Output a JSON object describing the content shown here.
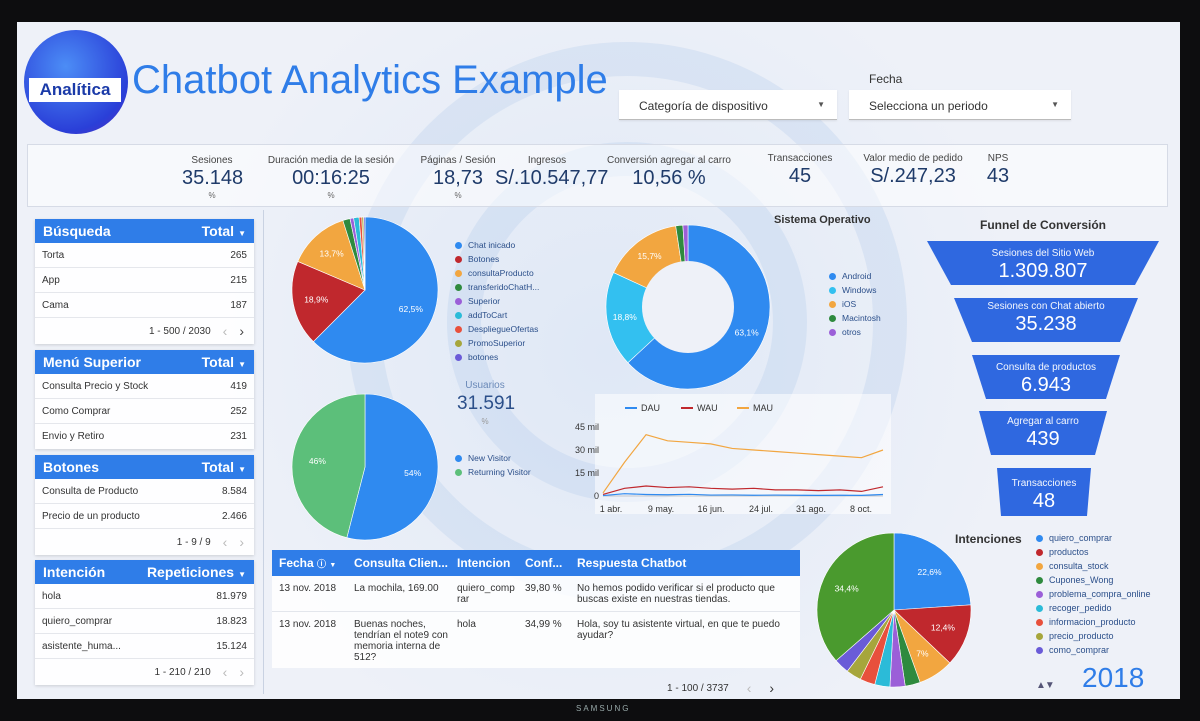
{
  "header": {
    "logo_text": "Analítica",
    "title": "Chatbot Analytics Example",
    "device_dropdown": "Categoría de dispositivo",
    "fecha_label": "Fecha",
    "period_dropdown": "Selecciona un periodo"
  },
  "kpis": [
    {
      "label": "Sesiones",
      "value": "35.148",
      "pct": "%"
    },
    {
      "label": "Duración media de la sesión",
      "value": "00:16:25",
      "pct": "%"
    },
    {
      "label": "Páginas / Sesión",
      "value": "18,73",
      "pct": "%"
    },
    {
      "label": "Ingresos",
      "value": "S/.10.547,77",
      "pct": ""
    },
    {
      "label": "Conversión agregar al carro",
      "value": "10,56 %",
      "pct": ""
    },
    {
      "label": "Transacciones",
      "value": "45",
      "pct": ""
    },
    {
      "label": "Valor medio de pedido",
      "value": "S/.247,23",
      "pct": ""
    },
    {
      "label": "NPS",
      "value": "43",
      "pct": ""
    }
  ],
  "busqueda": {
    "title": "Búsqueda",
    "metric": "Total",
    "rows": [
      {
        "k": "Torta",
        "v": "265"
      },
      {
        "k": "App",
        "v": "215"
      },
      {
        "k": "Cama",
        "v": "187"
      }
    ],
    "pagination": "1 - 500 / 2030"
  },
  "menu": {
    "title": "Menú Superior",
    "metric": "Total",
    "rows": [
      {
        "k": "Consulta Precio y Stock",
        "v": "419"
      },
      {
        "k": "Como Comprar",
        "v": "252"
      },
      {
        "k": "Envio y Retiro",
        "v": "231"
      }
    ]
  },
  "botones": {
    "title": "Botones",
    "metric": "Total",
    "rows": [
      {
        "k": "Consulta de Producto",
        "v": "8.584"
      },
      {
        "k": "Precio de un producto",
        "v": "2.466"
      }
    ],
    "pagination": "1 - 9 / 9"
  },
  "intencion": {
    "title": "Intención",
    "metric": "Repeticiones",
    "rows": [
      {
        "k": "hola",
        "v": "81.979"
      },
      {
        "k": "quiero_comprar",
        "v": "18.823"
      },
      {
        "k": "asistente_huma...",
        "v": "15.124"
      }
    ],
    "pagination": "1 - 210 / 210"
  },
  "sistema_operativo_title": "Sistema Operativo",
  "usuarios": {
    "label": "Usuarios",
    "value": "31.591",
    "pct": "%"
  },
  "table": {
    "headers": [
      "Fecha",
      "Consulta Clien...",
      "Intencion",
      "Conf...",
      "Respuesta Chatbot"
    ],
    "rows": [
      [
        "13 nov. 2018",
        "La mochila, 169.00",
        "quiero_comprar",
        "39,80 %",
        "No hemos podido verificar si el producto que buscas existe en nuestras tiendas."
      ],
      [
        "13 nov. 2018",
        "Buenas noches, tendrían el note9 con memoria interna de 512?",
        "hola",
        "34,99 %",
        "Hola, soy tu asistente virtual, en que te puedo ayudar?"
      ]
    ],
    "pagination": "1 - 100 / 3737"
  },
  "funnel": {
    "title": "Funnel de Conversión",
    "steps": [
      {
        "label": "Sesiones del Sitio Web",
        "value": "1.309.807"
      },
      {
        "label": "Sesiones con Chat abierto",
        "value": "35.238"
      },
      {
        "label": "Consulta de productos",
        "value": "6.943"
      },
      {
        "label": "Agregar al carro",
        "value": "439"
      },
      {
        "label": "Transacciones",
        "value": "48"
      }
    ]
  },
  "intenciones_title": "Intenciones",
  "year": "2018",
  "colors": {
    "accent": "#2f7de8",
    "funnel": "#2f68e0"
  },
  "chart_data": [
    {
      "type": "pie",
      "labels": [
        "Chat inicado",
        "Botones",
        "consultaProducto",
        "transferidoChatH...",
        "Superior",
        "addToCart",
        "DespliegueOfertas",
        "PromoSuperior",
        "botones"
      ],
      "values": [
        62.5,
        18.9,
        13.7,
        1.6,
        0.8,
        1.2,
        0.6,
        0.4,
        0.3
      ],
      "slice_labels": [
        "62,5%",
        "18,9%",
        "13,7%",
        "",
        "",
        "",
        "",
        "",
        ""
      ],
      "colors": [
        "#2f8af0",
        "#c0282d",
        "#f2a640",
        "#2e8a3e",
        "#9b5fd8",
        "#2bbbd8",
        "#e8503c",
        "#a6a63c",
        "#6a5bd8"
      ]
    },
    {
      "type": "pie",
      "title": "Sistema Operativo",
      "donut": true,
      "labels": [
        "Android",
        "Windows",
        "iOS",
        "Macintosh",
        "otros"
      ],
      "values": [
        63.1,
        18.8,
        15.7,
        1.4,
        1.0
      ],
      "slice_labels": [
        "63,1%",
        "18,8%",
        "15,7%",
        "",
        ""
      ],
      "colors": [
        "#2f8af0",
        "#33c0f0",
        "#f2a640",
        "#2e8a3e",
        "#9b5fd8"
      ]
    },
    {
      "type": "pie",
      "labels": [
        "New Visitor",
        "Returning Visitor"
      ],
      "values": [
        54,
        46
      ],
      "slice_labels": [
        "54%",
        "46%"
      ],
      "colors": [
        "#2f8af0",
        "#5cbf7a"
      ]
    },
    {
      "type": "line",
      "series": [
        {
          "name": "DAU",
          "color": "#2f8af0",
          "values": [
            0.3,
            1.5,
            1.0,
            0.8,
            1.1,
            0.6,
            0.7,
            0.5,
            0.6,
            0.5,
            0.4,
            0.5,
            0.4,
            1.0
          ]
        },
        {
          "name": "WAU",
          "color": "#c0282d",
          "values": [
            1,
            5,
            6.5,
            5.5,
            6,
            5,
            4.5,
            5,
            4,
            4,
            3.5,
            4,
            3,
            6
          ]
        },
        {
          "name": "MAU",
          "color": "#f2a640",
          "values": [
            2,
            22,
            40,
            36,
            35,
            34,
            31,
            30,
            29,
            28,
            27,
            26,
            25,
            30
          ]
        }
      ],
      "y_ticks": [
        "0",
        "15 mil",
        "30 mil",
        "45 mil"
      ],
      "x_ticks": [
        "1 abr.",
        "9 may.",
        "16 jun.",
        "24 jul.",
        "31 ago.",
        "8 oct."
      ],
      "ylim": [
        0,
        45
      ]
    },
    {
      "type": "pie",
      "title": "Intenciones",
      "labels": [
        "quiero_comprar",
        "productos",
        "consulta_stock",
        "Cupones_Wong",
        "problema_compra_online",
        "recoger_pedido",
        "informacion_producto",
        "precio_producto",
        "como_comprar"
      ],
      "values": [
        22.6,
        12.4,
        7,
        3,
        3,
        3,
        3,
        3,
        3
      ],
      "rest_value": 34.4,
      "rest_color": "#4a9a2e",
      "rest_label": "34,4%",
      "slice_labels": [
        "22,6%",
        "12,4%",
        "7%",
        "",
        "",
        "",
        "",
        "",
        ""
      ],
      "colors": [
        "#2f8af0",
        "#c0282d",
        "#f2a640",
        "#2e8a3e",
        "#9b5fd8",
        "#2bbbd8",
        "#e8503c",
        "#a6a63c",
        "#6a5bd8"
      ]
    }
  ]
}
